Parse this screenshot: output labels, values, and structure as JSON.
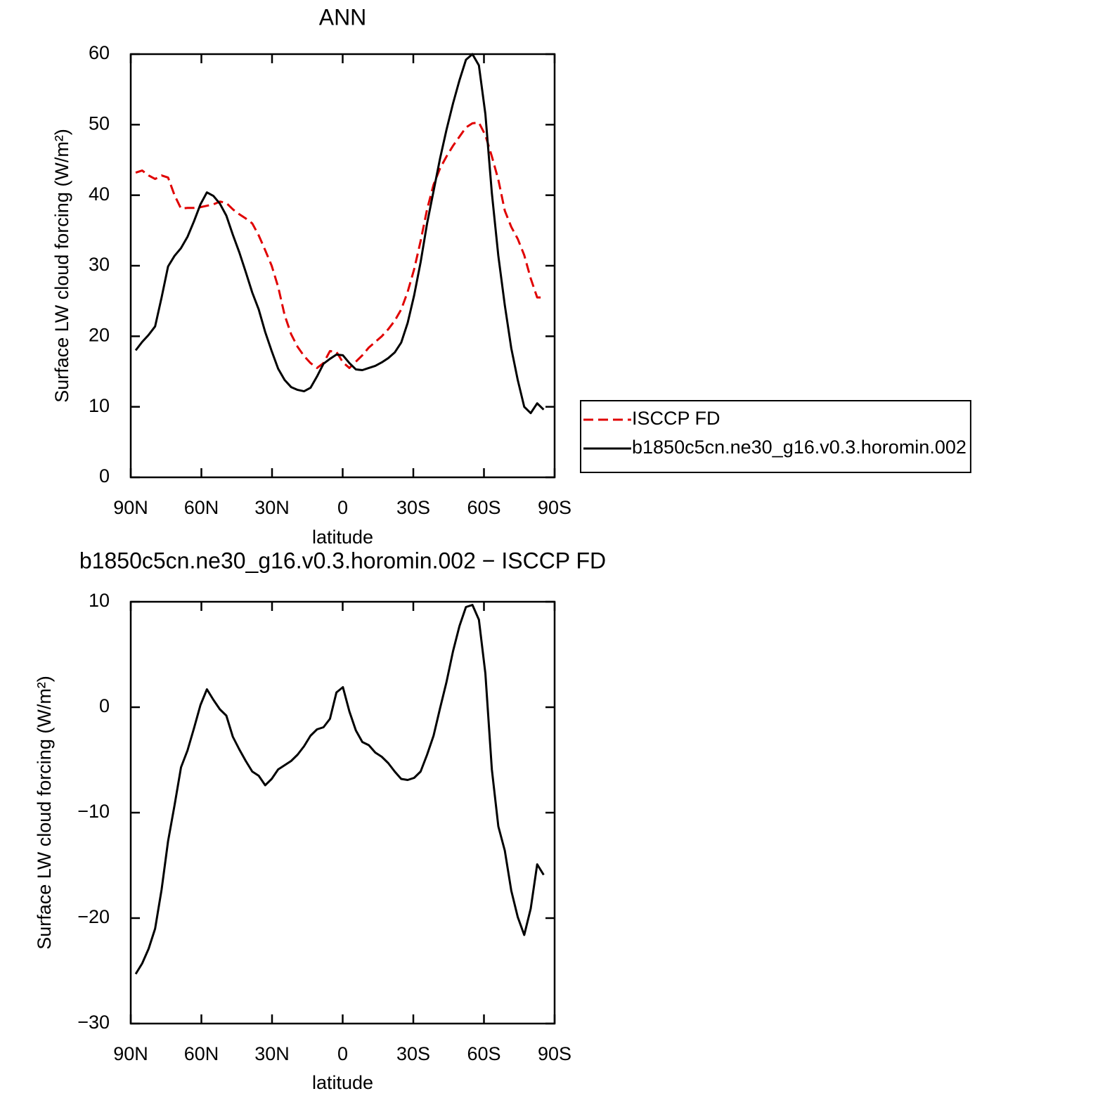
{
  "chart_data": [
    {
      "type": "line",
      "title": "ANN",
      "xlabel": "latitude",
      "ylabel": "Surface LW cloud forcing (W/m²)",
      "x": [
        87.9,
        85.15,
        82.4,
        79.65,
        76.9,
        74.15,
        71.4,
        68.65,
        65.9,
        63.15,
        60.4,
        57.65,
        54.9,
        52.15,
        49.4,
        46.65,
        43.9,
        41.15,
        38.4,
        35.65,
        32.9,
        30.15,
        27.4,
        24.65,
        21.9,
        19.15,
        16.4,
        13.65,
        10.9,
        8.15,
        5.4,
        2.65,
        -0.1,
        -2.85,
        -5.6,
        -8.35,
        -11.1,
        -13.85,
        -16.6,
        -19.35,
        -22.1,
        -24.85,
        -27.6,
        -30.35,
        -33.1,
        -35.85,
        -38.6,
        -41.35,
        -44.1,
        -46.85,
        -49.6,
        -52.35,
        -55.1,
        -57.85,
        -60.6,
        -63.35,
        -66.1,
        -68.85,
        -71.6,
        -74.35,
        -77.1,
        -79.85,
        -82.6,
        -85.35
      ],
      "series": [
        {
          "name": "ISCCP FD",
          "color": "#e00000",
          "style": "dashed",
          "values": [
            43.2,
            43.5,
            42.8,
            42.3,
            42.8,
            42.5,
            40.0,
            38.1,
            38.2,
            38.2,
            38.3,
            38.5,
            38.7,
            39.1,
            38.9,
            38.0,
            37.3,
            36.7,
            36.0,
            34.3,
            32.2,
            30.0,
            27.0,
            23.0,
            20.3,
            18.5,
            17.2,
            16.2,
            15.5,
            16.2,
            17.9,
            17.8,
            16.3,
            15.5,
            16.4,
            17.3,
            18.4,
            19.2,
            20.0,
            21.0,
            22.2,
            23.8,
            26.3,
            29.5,
            33.5,
            38.0,
            41.5,
            43.8,
            45.5,
            47.0,
            48.3,
            49.6,
            50.2,
            50.3,
            48.5,
            45.5,
            42.2,
            37.8,
            35.5,
            33.8,
            31.5,
            28.2,
            25.5,
            25.5
          ]
        },
        {
          "name": "b1850c5cn.ne30_g16.v0.3.horomin.002",
          "color": "#000000",
          "style": "solid",
          "values": [
            18.0,
            19.2,
            20.2,
            21.4,
            25.5,
            29.9,
            31.4,
            32.5,
            34.1,
            36.3,
            38.7,
            40.4,
            39.9,
            38.8,
            37.1,
            34.4,
            31.9,
            29.1,
            26.2,
            23.8,
            20.6,
            17.9,
            15.4,
            13.8,
            12.8,
            12.4,
            12.2,
            12.7,
            14.3,
            16.1,
            16.8,
            17.4,
            17.3,
            16.2,
            15.3,
            15.2,
            15.5,
            15.8,
            16.3,
            16.9,
            17.7,
            19.1,
            21.9,
            25.8,
            30.5,
            36.0,
            40.6,
            45.2,
            49.3,
            53.0,
            56.3,
            59.2,
            60.0,
            58.4,
            51.5,
            40.3,
            31.4,
            24.4,
            18.3,
            13.8,
            10.0,
            9.1,
            10.5,
            9.6
          ]
        }
      ],
      "xlim": [
        90,
        -90
      ],
      "xticks": [
        {
          "value": 90,
          "label": "90N"
        },
        {
          "value": 60,
          "label": "60N"
        },
        {
          "value": 30,
          "label": "30N"
        },
        0,
        {
          "value": -30,
          "label": "30S"
        },
        {
          "value": -60,
          "label": "60S"
        },
        {
          "value": -90,
          "label": "90S"
        }
      ],
      "ylim": [
        0,
        60
      ],
      "yticks": [
        0,
        10,
        20,
        30,
        40,
        50,
        60
      ],
      "legend": "right"
    },
    {
      "type": "line",
      "title": "b1850c5cn.ne30_g16.v0.3.horomin.002 − ISCCP FD",
      "xlabel": "latitude",
      "ylabel": "Surface LW cloud forcing (W/m²)",
      "x": [
        87.9,
        85.15,
        82.4,
        79.65,
        76.9,
        74.15,
        71.4,
        68.65,
        65.9,
        63.15,
        60.4,
        57.65,
        54.9,
        52.15,
        49.4,
        46.65,
        43.9,
        41.15,
        38.4,
        35.65,
        32.9,
        30.15,
        27.4,
        24.65,
        21.9,
        19.15,
        16.4,
        13.65,
        10.9,
        8.15,
        5.4,
        2.65,
        -0.1,
        -2.85,
        -5.6,
        -8.35,
        -11.1,
        -13.85,
        -16.6,
        -19.35,
        -22.1,
        -24.85,
        -27.6,
        -30.35,
        -33.1,
        -35.85,
        -38.6,
        -41.35,
        -44.1,
        -46.85,
        -49.6,
        -52.35,
        -55.1,
        -57.85,
        -60.6,
        -63.35,
        -66.1,
        -68.85,
        -71.6,
        -74.35,
        -77.1,
        -79.85,
        -82.6,
        -85.35
      ],
      "values": [
        -25.3,
        -24.3,
        -22.9,
        -21.0,
        -17.3,
        -12.7,
        -9.3,
        -5.7,
        -4.1,
        -2.0,
        0.2,
        1.7,
        0.7,
        -0.2,
        -0.8,
        -2.8,
        -4.0,
        -5.1,
        -6.1,
        -6.5,
        -7.4,
        -6.8,
        -5.9,
        -5.5,
        -5.1,
        -4.5,
        -3.7,
        -2.7,
        -2.1,
        -1.9,
        -1.1,
        1.4,
        1.9,
        -0.4,
        -2.2,
        -3.3,
        -3.6,
        -4.3,
        -4.7,
        -5.3,
        -6.1,
        -6.8,
        -6.9,
        -6.7,
        -6.1,
        -4.5,
        -2.7,
        -0.1,
        2.4,
        5.3,
        7.7,
        9.5,
        9.7,
        8.3,
        3.2,
        -5.9,
        -11.3,
        -13.6,
        -17.4,
        -19.9,
        -21.6,
        -19.1,
        -14.9,
        -15.9
      ],
      "color": "#000000",
      "xlim": [
        90,
        -90
      ],
      "xticks": [
        {
          "value": 90,
          "label": "90N"
        },
        {
          "value": 60,
          "label": "60N"
        },
        {
          "value": 30,
          "label": "30N"
        },
        0,
        {
          "value": -30,
          "label": "30S"
        },
        {
          "value": -60,
          "label": "60S"
        },
        {
          "value": -90,
          "label": "90S"
        }
      ],
      "ylim": [
        -30,
        10
      ],
      "yticks": [
        {
          "value": -30,
          "label": "−30"
        },
        {
          "value": -20,
          "label": "−20"
        },
        {
          "value": -10,
          "label": "−10"
        },
        0,
        10
      ]
    }
  ]
}
